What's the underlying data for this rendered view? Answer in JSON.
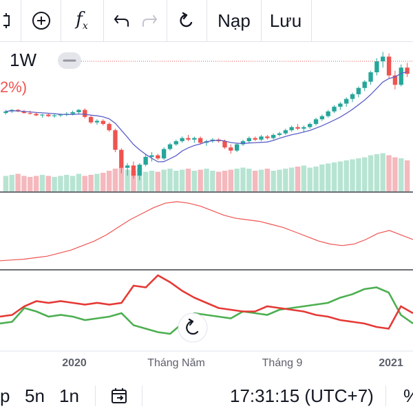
{
  "toolbar": {
    "clip_icon": "partial-icon",
    "add_icon": "plus-circle-icon",
    "fx_label": "f",
    "fx_sub": "x",
    "undo_icon": "undo-icon",
    "redo_icon": "redo-icon",
    "reload_icon": "reload-icon",
    "load_label": "Nạp",
    "save_label": "Lưu"
  },
  "legend": {
    "interval": "1W",
    "change_partial": "2%)",
    "change_color": "#ef5350"
  },
  "colors": {
    "up": "#26a69a",
    "down": "#ef5350",
    "vol_up": "#b7e4d2",
    "vol_down": "#f4b8bd",
    "ma": "#5b5fc7",
    "osc1": "#ef5350",
    "osc2_green": "#4caf50",
    "osc2_red": "#e53935"
  },
  "chart_data": {
    "type": "candlestick",
    "interval": "1W",
    "x_labels": [
      "2020",
      "Tháng Năm",
      "Tháng 9",
      "2021"
    ],
    "candles": [
      {
        "o": 142,
        "h": 146,
        "l": 140,
        "c": 144
      },
      {
        "o": 144,
        "h": 147,
        "l": 142,
        "c": 146
      },
      {
        "o": 146,
        "h": 147,
        "l": 143,
        "c": 144
      },
      {
        "o": 144,
        "h": 146,
        "l": 141,
        "c": 142
      },
      {
        "o": 142,
        "h": 145,
        "l": 140,
        "c": 141
      },
      {
        "o": 141,
        "h": 143,
        "l": 138,
        "c": 139
      },
      {
        "o": 139,
        "h": 141,
        "l": 136,
        "c": 140
      },
      {
        "o": 140,
        "h": 142,
        "l": 137,
        "c": 138
      },
      {
        "o": 138,
        "h": 141,
        "l": 136,
        "c": 139
      },
      {
        "o": 139,
        "h": 141,
        "l": 137,
        "c": 140
      },
      {
        "o": 140,
        "h": 143,
        "l": 138,
        "c": 141
      },
      {
        "o": 141,
        "h": 145,
        "l": 139,
        "c": 143
      },
      {
        "o": 143,
        "h": 147,
        "l": 141,
        "c": 146
      },
      {
        "o": 146,
        "h": 148,
        "l": 135,
        "c": 137
      },
      {
        "o": 137,
        "h": 139,
        "l": 128,
        "c": 130
      },
      {
        "o": 130,
        "h": 134,
        "l": 127,
        "c": 132
      },
      {
        "o": 132,
        "h": 134,
        "l": 126,
        "c": 128
      },
      {
        "o": 128,
        "h": 130,
        "l": 118,
        "c": 120
      },
      {
        "o": 120,
        "h": 122,
        "l": 92,
        "c": 95
      },
      {
        "o": 95,
        "h": 97,
        "l": 65,
        "c": 72
      },
      {
        "o": 72,
        "h": 78,
        "l": 62,
        "c": 75
      },
      {
        "o": 75,
        "h": 80,
        "l": 58,
        "c": 62
      },
      {
        "o": 62,
        "h": 78,
        "l": 56,
        "c": 76
      },
      {
        "o": 76,
        "h": 90,
        "l": 74,
        "c": 86
      },
      {
        "o": 86,
        "h": 92,
        "l": 80,
        "c": 88
      },
      {
        "o": 88,
        "h": 90,
        "l": 82,
        "c": 84
      },
      {
        "o": 84,
        "h": 98,
        "l": 82,
        "c": 96
      },
      {
        "o": 96,
        "h": 104,
        "l": 94,
        "c": 102
      },
      {
        "o": 102,
        "h": 108,
        "l": 100,
        "c": 106
      },
      {
        "o": 106,
        "h": 112,
        "l": 104,
        "c": 110
      },
      {
        "o": 110,
        "h": 114,
        "l": 106,
        "c": 108
      },
      {
        "o": 108,
        "h": 112,
        "l": 104,
        "c": 110
      },
      {
        "o": 110,
        "h": 112,
        "l": 102,
        "c": 104
      },
      {
        "o": 104,
        "h": 108,
        "l": 100,
        "c": 106
      },
      {
        "o": 106,
        "h": 110,
        "l": 104,
        "c": 108
      },
      {
        "o": 108,
        "h": 110,
        "l": 104,
        "c": 106
      },
      {
        "o": 106,
        "h": 108,
        "l": 96,
        "c": 98
      },
      {
        "o": 98,
        "h": 102,
        "l": 90,
        "c": 94
      },
      {
        "o": 94,
        "h": 104,
        "l": 92,
        "c": 102
      },
      {
        "o": 102,
        "h": 108,
        "l": 100,
        "c": 106
      },
      {
        "o": 106,
        "h": 112,
        "l": 104,
        "c": 110
      },
      {
        "o": 110,
        "h": 112,
        "l": 106,
        "c": 108
      },
      {
        "o": 108,
        "h": 114,
        "l": 106,
        "c": 112
      },
      {
        "o": 112,
        "h": 114,
        "l": 108,
        "c": 110
      },
      {
        "o": 110,
        "h": 116,
        "l": 108,
        "c": 114
      },
      {
        "o": 114,
        "h": 118,
        "l": 112,
        "c": 116
      },
      {
        "o": 116,
        "h": 122,
        "l": 114,
        "c": 120
      },
      {
        "o": 120,
        "h": 126,
        "l": 118,
        "c": 124
      },
      {
        "o": 124,
        "h": 128,
        "l": 120,
        "c": 122
      },
      {
        "o": 122,
        "h": 126,
        "l": 118,
        "c": 124
      },
      {
        "o": 124,
        "h": 130,
        "l": 122,
        "c": 128
      },
      {
        "o": 128,
        "h": 136,
        "l": 126,
        "c": 134
      },
      {
        "o": 134,
        "h": 140,
        "l": 132,
        "c": 138
      },
      {
        "o": 138,
        "h": 146,
        "l": 136,
        "c": 144
      },
      {
        "o": 144,
        "h": 152,
        "l": 142,
        "c": 150
      },
      {
        "o": 150,
        "h": 156,
        "l": 146,
        "c": 154
      },
      {
        "o": 154,
        "h": 162,
        "l": 150,
        "c": 160
      },
      {
        "o": 160,
        "h": 168,
        "l": 156,
        "c": 166
      },
      {
        "o": 166,
        "h": 176,
        "l": 162,
        "c": 174
      },
      {
        "o": 174,
        "h": 184,
        "l": 170,
        "c": 182
      },
      {
        "o": 182,
        "h": 196,
        "l": 178,
        "c": 194
      },
      {
        "o": 194,
        "h": 212,
        "l": 190,
        "c": 208
      },
      {
        "o": 208,
        "h": 220,
        "l": 200,
        "c": 214
      },
      {
        "o": 214,
        "h": 218,
        "l": 186,
        "c": 190
      },
      {
        "o": 190,
        "h": 196,
        "l": 172,
        "c": 178
      },
      {
        "o": 178,
        "h": 204,
        "l": 176,
        "c": 200
      },
      {
        "o": 200,
        "h": 206,
        "l": 188,
        "c": 192
      }
    ],
    "volumes": [
      30,
      32,
      34,
      30,
      28,
      30,
      32,
      30,
      28,
      30,
      32,
      30,
      34,
      30,
      32,
      34,
      36,
      40,
      44,
      46,
      42,
      40,
      44,
      38,
      40,
      38,
      42,
      44,
      40,
      42,
      44,
      40,
      42,
      44,
      40,
      38,
      40,
      42,
      44,
      46,
      44,
      40,
      42,
      44,
      40,
      42,
      44,
      46,
      48,
      50,
      46,
      48,
      52,
      54,
      56,
      58,
      60,
      62,
      64,
      66,
      70,
      72,
      74,
      70,
      66,
      64,
      60
    ],
    "osc1": [
      12,
      13,
      14,
      16,
      18,
      22,
      26,
      32,
      38,
      46,
      56,
      66,
      74,
      82,
      88,
      90,
      88,
      84,
      78,
      72,
      68,
      66,
      64,
      60,
      56,
      50,
      44,
      38,
      34,
      32,
      34,
      40,
      48,
      52,
      46,
      40
    ],
    "osc2_green": [
      40,
      42,
      58,
      54,
      48,
      50,
      48,
      44,
      46,
      48,
      52,
      38,
      34,
      30,
      28,
      40,
      52,
      50,
      48,
      46,
      54,
      52,
      50,
      56,
      58,
      60,
      62,
      64,
      70,
      74,
      80,
      82,
      76,
      50,
      40
    ],
    "osc2_red": [
      48,
      50,
      60,
      66,
      64,
      66,
      64,
      62,
      64,
      62,
      64,
      84,
      82,
      96,
      88,
      78,
      70,
      64,
      58,
      56,
      54,
      54,
      60,
      58,
      56,
      54,
      50,
      48,
      44,
      42,
      40,
      36,
      34,
      60,
      52
    ]
  },
  "bottom_bar": {
    "range_partial": "p",
    "range_5": "5n",
    "range_1": "1n",
    "goto_icon": "calendar-goto-icon",
    "time": "17:31:15 (UTC+7)",
    "pct_partial": "%"
  }
}
